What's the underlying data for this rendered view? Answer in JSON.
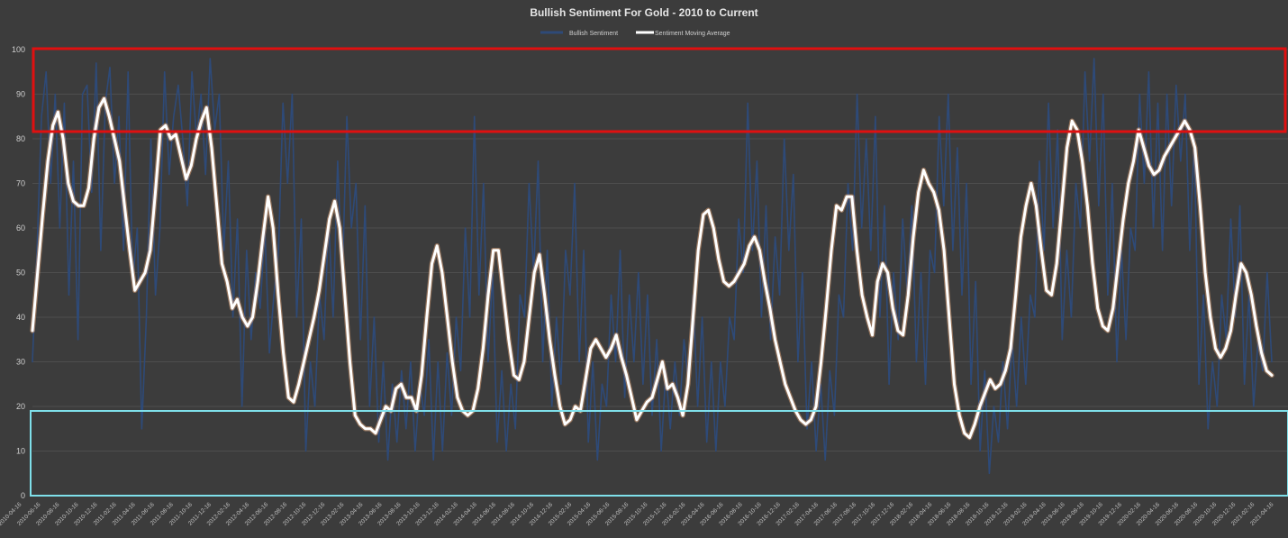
{
  "chart_data": {
    "type": "line",
    "title": "Bullish Sentiment For Gold - 2010 to Current",
    "ylim": [
      0,
      100
    ],
    "yticks": [
      0,
      10,
      20,
      30,
      40,
      50,
      60,
      70,
      80,
      90,
      100
    ],
    "grid": true,
    "legend_position": "top-center",
    "x_tick_labels": [
      "2010-04-16",
      "2010-06-16",
      "2010-08-16",
      "2010-10-16",
      "2010-12-16",
      "2011-02-16",
      "2011-04-16",
      "2011-06-16",
      "2011-08-16",
      "2011-10-16",
      "2011-12-16",
      "2012-02-16",
      "2012-04-16",
      "2012-06-16",
      "2012-08-16",
      "2012-10-16",
      "2012-12-16",
      "2013-02-16",
      "2013-04-16",
      "2013-06-16",
      "2013-08-16",
      "2013-10-16",
      "2013-12-16",
      "2014-02-16",
      "2014-04-16",
      "2014-06-16",
      "2014-08-16",
      "2014-10-16",
      "2014-12-16",
      "2015-02-16",
      "2015-04-16",
      "2015-06-16",
      "2015-08-16",
      "2015-10-16",
      "2015-12-16",
      "2016-02-16",
      "2016-04-16",
      "2016-06-16",
      "2016-08-16",
      "2016-10-16",
      "2016-12-16",
      "2017-02-16",
      "2017-04-16",
      "2017-06-16",
      "2017-08-16",
      "2017-10-16",
      "2017-12-16",
      "2018-02-16",
      "2018-04-16",
      "2018-06-16",
      "2018-08-16",
      "2018-10-16",
      "2018-12-16",
      "2019-02-16",
      "2019-04-16",
      "2019-06-16",
      "2019-08-16",
      "2019-10-16",
      "2019-12-16",
      "2020-02-16",
      "2020-04-16",
      "2020-06-16",
      "2020-08-16",
      "2020-10-16",
      "2020-12-16",
      "2021-02-16",
      "2021-04-16"
    ],
    "series": [
      {
        "name": "Bullish Sentiment",
        "color": "#2e4a78",
        "values": [
          30,
          55,
          85,
          95,
          70,
          90,
          60,
          88,
          45,
          75,
          35,
          90,
          92,
          68,
          97,
          55,
          88,
          96,
          70,
          85,
          55,
          95,
          48,
          60,
          15,
          40,
          80,
          45,
          60,
          95,
          72,
          85,
          92,
          80,
          65,
          95,
          80,
          90,
          72,
          98,
          82,
          90,
          55,
          75,
          40,
          62,
          20,
          55,
          35,
          50,
          42,
          60,
          32,
          45,
          55,
          88,
          70,
          90,
          40,
          62,
          10,
          30,
          20,
          45,
          35,
          62,
          40,
          75,
          48,
          85,
          60,
          70,
          35,
          65,
          20,
          40,
          12,
          30,
          8,
          25,
          12,
          28,
          15,
          30,
          10,
          25,
          18,
          35,
          8,
          30,
          10,
          32,
          18,
          40,
          28,
          60,
          40,
          85,
          45,
          70,
          30,
          50,
          12,
          28,
          10,
          25,
          15,
          45,
          40,
          70,
          50,
          75,
          30,
          55,
          20,
          40,
          25,
          55,
          45,
          70,
          30,
          55,
          12,
          30,
          8,
          25,
          20,
          45,
          30,
          55,
          22,
          45,
          30,
          50,
          25,
          45,
          18,
          35,
          10,
          28,
          15,
          30,
          18,
          35,
          25,
          45,
          20,
          40,
          12,
          30,
          10,
          30,
          20,
          40,
          35,
          62,
          50,
          88,
          55,
          75,
          40,
          65,
          35,
          58,
          45,
          80,
          55,
          72,
          30,
          50,
          15,
          30,
          10,
          25,
          8,
          28,
          18,
          45,
          40,
          70,
          55,
          90,
          60,
          80,
          55,
          85,
          40,
          65,
          25,
          50,
          35,
          62,
          45,
          65,
          30,
          50,
          25,
          55,
          50,
          85,
          65,
          90,
          55,
          78,
          45,
          70,
          25,
          48,
          10,
          28,
          5,
          20,
          12,
          30,
          15,
          35,
          20,
          40,
          25,
          45,
          40,
          75,
          55,
          88,
          60,
          82,
          35,
          55,
          40,
          70,
          60,
          95,
          75,
          98,
          65,
          90,
          45,
          70,
          30,
          55,
          35,
          60,
          55,
          90,
          70,
          95,
          60,
          88,
          55,
          90,
          65,
          92,
          75,
          90,
          55,
          80,
          25,
          45,
          15,
          30,
          20,
          45,
          35,
          62,
          40,
          65,
          25,
          45,
          20,
          35,
          28,
          50,
          30
        ]
      },
      {
        "name": "Sentiment Moving Average",
        "color": "#ffffff",
        "values": [
          37,
          50,
          63,
          75,
          83,
          86,
          80,
          70,
          66,
          65,
          65,
          69,
          80,
          87,
          89,
          85,
          80,
          75,
          65,
          55,
          46,
          48,
          50,
          55,
          68,
          82,
          83,
          80,
          81,
          76,
          71,
          74,
          80,
          84,
          87,
          78,
          65,
          52,
          48,
          42,
          44,
          40,
          38,
          40,
          48,
          58,
          67,
          60,
          45,
          32,
          22,
          21,
          25,
          30,
          35,
          40,
          46,
          54,
          62,
          66,
          60,
          45,
          30,
          18,
          16,
          15,
          15,
          14,
          17,
          20,
          19,
          24,
          25,
          22,
          22,
          19,
          27,
          40,
          52,
          56,
          50,
          40,
          30,
          22,
          19,
          18,
          19,
          24,
          33,
          45,
          55,
          55,
          45,
          35,
          27,
          26,
          30,
          40,
          50,
          54,
          45,
          35,
          27,
          20,
          16,
          17,
          20,
          19,
          26,
          33,
          35,
          33,
          31,
          33,
          36,
          31,
          27,
          22,
          17,
          19,
          21,
          22,
          26,
          30,
          24,
          25,
          22,
          18,
          25,
          40,
          55,
          63,
          64,
          60,
          53,
          48,
          47,
          48,
          50,
          52,
          56,
          58,
          55,
          48,
          42,
          35,
          30,
          25,
          22,
          19,
          17,
          16,
          17,
          20,
          30,
          42,
          55,
          65,
          64,
          67,
          67,
          55,
          45,
          40,
          36,
          48,
          52,
          50,
          42,
          37,
          36,
          45,
          58,
          68,
          73,
          70,
          68,
          64,
          55,
          40,
          25,
          18,
          14,
          13,
          16,
          20,
          23,
          26,
          24,
          25,
          28,
          33,
          45,
          58,
          65,
          70,
          65,
          55,
          46,
          45,
          52,
          65,
          78,
          84,
          82,
          75,
          65,
          52,
          42,
          38,
          37,
          42,
          52,
          62,
          70,
          75,
          82,
          78,
          74,
          72,
          73,
          76,
          78,
          80,
          82,
          84,
          82,
          78,
          65,
          50,
          40,
          33,
          31,
          33,
          37,
          45,
          52,
          50,
          45,
          38,
          32,
          28,
          27
        ]
      }
    ]
  }
}
